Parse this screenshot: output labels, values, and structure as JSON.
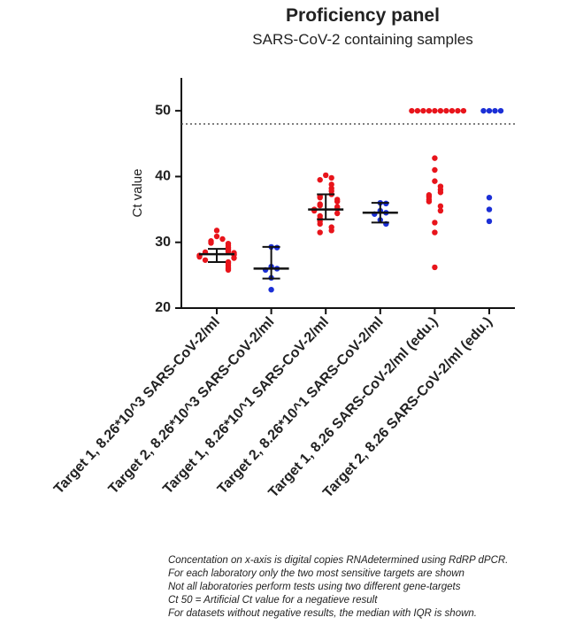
{
  "chart_data": {
    "type": "dot",
    "title": "Proficiency panel",
    "subtitle": "SARS-CoV-2 containing samples",
    "y_label": "Ct value",
    "categories": [
      "Target 1, 8.26*10^3 SARS-CoV-2/ml",
      "Target 2, 8.26*10^3 SARS-CoV-2/ml",
      "Target 1, 8.26*10^1 SARS-CoV-2/ml",
      "Target 2, 8.26*10^1 SARS-CoV-2/ml",
      "Target 1, 8.26 SARS-CoV-2/ml (edu.)",
      "Target 2, 8.26 SARS-CoV-2/ml (edu.)"
    ],
    "colors": [
      "#e8141b",
      "#1b2fd6",
      "#e8141b",
      "#1b2fd6",
      "#e8141b",
      "#1b2fd6"
    ],
    "points": [
      [
        31.8,
        30.9,
        30.5,
        30.2,
        29.9,
        29.8,
        29.5,
        29.2,
        29,
        28.8,
        28.6,
        28.5,
        28.4,
        28.2,
        28.1,
        28,
        27.8,
        27.6,
        27.3,
        27,
        26.8,
        26.5,
        26.2,
        26,
        25.8
      ],
      [
        29.3,
        29.2,
        26.3,
        26,
        25.8,
        24.6,
        22.8
      ],
      [
        40.2,
        39.8,
        39.5,
        38.8,
        38.2,
        37.8,
        37.3,
        37,
        36.8,
        36.5,
        36.2,
        35.8,
        35.6,
        35.4,
        35.1,
        35,
        34.8,
        34.4,
        34,
        33.6,
        33.2,
        32.8,
        32.3,
        31.8,
        31.5
      ],
      [
        36,
        35.9,
        34.8,
        34.5,
        34.3,
        33.4,
        32.8
      ],
      [
        50,
        50,
        50,
        50,
        50,
        50,
        50,
        50,
        50,
        50,
        42.8,
        41,
        39.3,
        38.5,
        38,
        37.6,
        37.2,
        36.9,
        36.5,
        36.2,
        35.5,
        34.8,
        33,
        31.5,
        26.2
      ],
      [
        50,
        50,
        50,
        50,
        36.8,
        35,
        33.2
      ]
    ],
    "medians": [
      28.2,
      26,
      35,
      34.5,
      null,
      null
    ],
    "q1": [
      27,
      24.5,
      33.5,
      33,
      null,
      null
    ],
    "q3": [
      29,
      29.3,
      37.3,
      36,
      null,
      null
    ],
    "reference_line": 48,
    "ylim": [
      20,
      55
    ],
    "yticks": [
      20,
      30,
      40,
      50
    ],
    "footnotes": [
      "Concentation on x-axis is digital copies RNAdetermined using RdRP dPCR.",
      "For each laboratory only the two most sensitive targets are shown",
      "Not all laboratories perform tests using two different gene-targets",
      "Ct 50 = Artificial Ct value for a negatieve result",
      "For datasets without negative results, the median with IQR is shown."
    ]
  }
}
